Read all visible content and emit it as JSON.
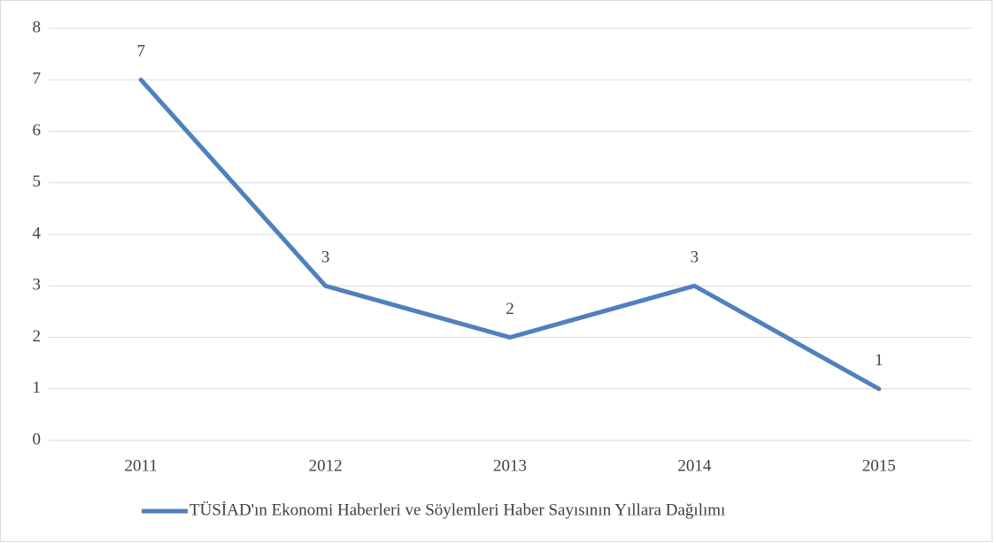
{
  "chart_data": {
    "type": "line",
    "categories": [
      "2011",
      "2012",
      "2013",
      "2014",
      "2015"
    ],
    "series": [
      {
        "name": "TÜSİAD'ın Ekonomi Haberleri ve Söylemleri Haber Sayısının Yıllara Dağılımı",
        "color": "#4f81bd",
        "values": [
          7,
          3,
          2,
          3,
          1
        ]
      }
    ],
    "ylim": [
      0,
      8
    ],
    "yticks": [
      0,
      1,
      2,
      3,
      4,
      5,
      6,
      7,
      8
    ],
    "grid": true,
    "legend": "bottom",
    "data_labels": true
  }
}
